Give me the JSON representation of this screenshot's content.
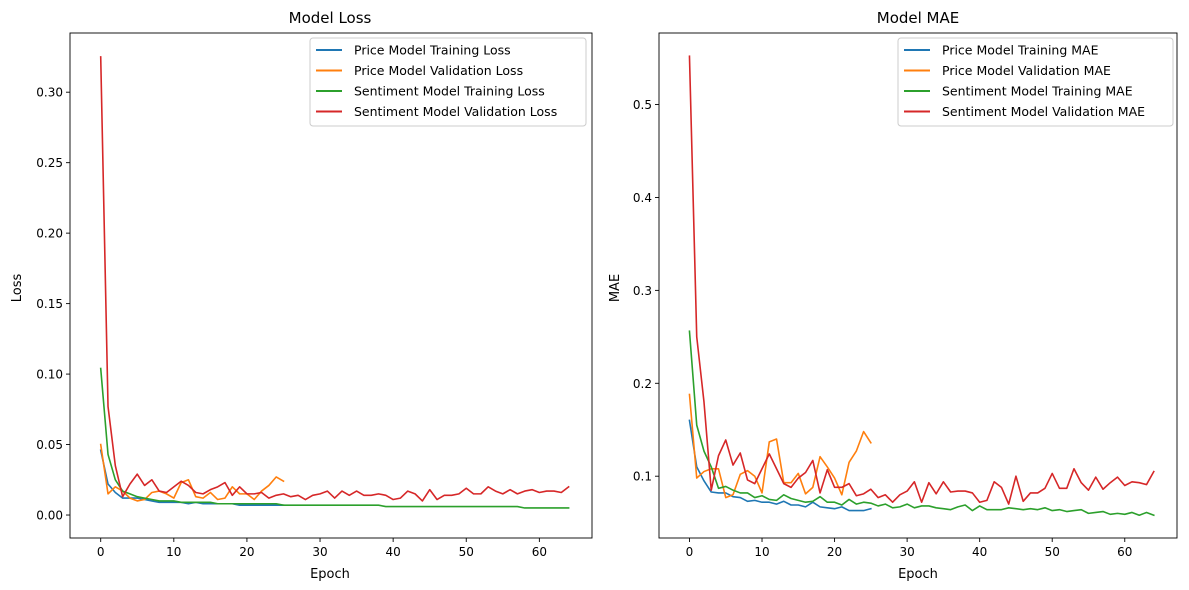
{
  "chart_data": [
    {
      "type": "line",
      "title": "Model Loss",
      "xlabel": "Epoch",
      "ylabel": "Loss",
      "xlim": [
        -4.2,
        67.2
      ],
      "ylim": [
        -0.0163,
        0.342
      ],
      "xticks": [
        0,
        10,
        20,
        30,
        40,
        50,
        60
      ],
      "xtick_labels": [
        "0",
        "10",
        "20",
        "30",
        "40",
        "50",
        "60"
      ],
      "yticks": [
        0.0,
        0.05,
        0.1,
        0.15,
        0.2,
        0.25,
        0.3
      ],
      "ytick_labels": [
        "0.00",
        "0.05",
        "0.10",
        "0.15",
        "0.20",
        "0.25",
        "0.30"
      ],
      "grid": false,
      "legend_position": "top-right",
      "series": [
        {
          "name": "Price Model Training Loss",
          "color": "#1f77b4",
          "values": [
            0.046,
            0.022,
            0.016,
            0.012,
            0.012,
            0.012,
            0.011,
            0.01,
            0.009,
            0.009,
            0.009,
            0.009,
            0.008,
            0.009,
            0.008,
            0.008,
            0.008,
            0.008,
            0.008,
            0.007,
            0.007,
            0.007,
            0.007,
            0.007,
            0.007,
            0.007
          ]
        },
        {
          "name": "Price Model Validation Loss",
          "color": "#ff7f0e",
          "values": [
            0.05,
            0.015,
            0.02,
            0.017,
            0.012,
            0.01,
            0.011,
            0.016,
            0.017,
            0.015,
            0.012,
            0.023,
            0.025,
            0.013,
            0.012,
            0.016,
            0.011,
            0.012,
            0.02,
            0.015,
            0.015,
            0.011,
            0.017,
            0.021,
            0.027,
            0.024
          ]
        },
        {
          "name": "Sentiment Model Training Loss",
          "color": "#2ca02c",
          "values": [
            0.104,
            0.043,
            0.025,
            0.017,
            0.015,
            0.013,
            0.012,
            0.011,
            0.01,
            0.01,
            0.01,
            0.009,
            0.009,
            0.009,
            0.009,
            0.009,
            0.008,
            0.008,
            0.008,
            0.008,
            0.008,
            0.008,
            0.008,
            0.008,
            0.008,
            0.007,
            0.007,
            0.007,
            0.007,
            0.007,
            0.007,
            0.007,
            0.007,
            0.007,
            0.007,
            0.007,
            0.007,
            0.007,
            0.007,
            0.006,
            0.006,
            0.006,
            0.006,
            0.006,
            0.006,
            0.006,
            0.006,
            0.006,
            0.006,
            0.006,
            0.006,
            0.006,
            0.006,
            0.006,
            0.006,
            0.006,
            0.006,
            0.006,
            0.005,
            0.005,
            0.005,
            0.005,
            0.005,
            0.005,
            0.005
          ]
        },
        {
          "name": "Sentiment Model Validation Loss",
          "color": "#d62728",
          "values": [
            0.325,
            0.077,
            0.035,
            0.013,
            0.022,
            0.029,
            0.021,
            0.025,
            0.017,
            0.016,
            0.02,
            0.024,
            0.021,
            0.016,
            0.015,
            0.018,
            0.02,
            0.023,
            0.014,
            0.02,
            0.015,
            0.015,
            0.016,
            0.012,
            0.014,
            0.015,
            0.013,
            0.014,
            0.011,
            0.014,
            0.015,
            0.017,
            0.012,
            0.017,
            0.014,
            0.017,
            0.014,
            0.014,
            0.015,
            0.014,
            0.011,
            0.012,
            0.017,
            0.015,
            0.01,
            0.018,
            0.011,
            0.014,
            0.014,
            0.015,
            0.019,
            0.015,
            0.015,
            0.02,
            0.017,
            0.015,
            0.018,
            0.015,
            0.017,
            0.018,
            0.016,
            0.017,
            0.017,
            0.016,
            0.02
          ]
        }
      ]
    },
    {
      "type": "line",
      "title": "Model MAE",
      "xlabel": "Epoch",
      "ylabel": "MAE",
      "xlim": [
        -4.2,
        67.2
      ],
      "ylim": [
        0.0335,
        0.577
      ],
      "xticks": [
        0,
        10,
        20,
        30,
        40,
        50,
        60
      ],
      "xtick_labels": [
        "0",
        "10",
        "20",
        "30",
        "40",
        "50",
        "60"
      ],
      "yticks": [
        0.1,
        0.2,
        0.3,
        0.4,
        0.5
      ],
      "ytick_labels": [
        "0.1",
        "0.2",
        "0.3",
        "0.4",
        "0.5"
      ],
      "grid": false,
      "legend_position": "top-right",
      "series": [
        {
          "name": "Price Model Training MAE",
          "color": "#1f77b4",
          "values": [
            0.16,
            0.11,
            0.095,
            0.083,
            0.082,
            0.082,
            0.078,
            0.077,
            0.073,
            0.074,
            0.072,
            0.072,
            0.07,
            0.073,
            0.069,
            0.069,
            0.067,
            0.072,
            0.067,
            0.066,
            0.065,
            0.067,
            0.063,
            0.063,
            0.063,
            0.065
          ]
        },
        {
          "name": "Price Model Validation MAE",
          "color": "#ff7f0e",
          "values": [
            0.188,
            0.098,
            0.105,
            0.108,
            0.108,
            0.077,
            0.08,
            0.102,
            0.106,
            0.1,
            0.082,
            0.137,
            0.14,
            0.093,
            0.093,
            0.103,
            0.081,
            0.088,
            0.121,
            0.11,
            0.098,
            0.08,
            0.115,
            0.127,
            0.148,
            0.136
          ]
        },
        {
          "name": "Sentiment Model Training MAE",
          "color": "#2ca02c",
          "values": [
            0.256,
            0.155,
            0.127,
            0.11,
            0.087,
            0.089,
            0.085,
            0.082,
            0.082,
            0.077,
            0.079,
            0.075,
            0.074,
            0.08,
            0.076,
            0.074,
            0.072,
            0.073,
            0.078,
            0.072,
            0.072,
            0.069,
            0.075,
            0.07,
            0.072,
            0.071,
            0.068,
            0.07,
            0.066,
            0.067,
            0.07,
            0.066,
            0.068,
            0.068,
            0.066,
            0.065,
            0.064,
            0.067,
            0.069,
            0.063,
            0.068,
            0.064,
            0.064,
            0.064,
            0.066,
            0.065,
            0.064,
            0.065,
            0.064,
            0.066,
            0.063,
            0.064,
            0.062,
            0.063,
            0.064,
            0.06,
            0.061,
            0.062,
            0.059,
            0.06,
            0.059,
            0.061,
            0.058,
            0.061,
            0.058
          ]
        },
        {
          "name": "Sentiment Model Validation MAE",
          "color": "#d62728",
          "values": [
            0.552,
            0.25,
            0.18,
            0.085,
            0.122,
            0.139,
            0.112,
            0.125,
            0.096,
            0.092,
            0.108,
            0.124,
            0.108,
            0.092,
            0.088,
            0.098,
            0.104,
            0.117,
            0.082,
            0.107,
            0.088,
            0.088,
            0.092,
            0.079,
            0.081,
            0.086,
            0.077,
            0.08,
            0.072,
            0.08,
            0.084,
            0.094,
            0.072,
            0.093,
            0.081,
            0.094,
            0.083,
            0.084,
            0.084,
            0.082,
            0.072,
            0.074,
            0.094,
            0.088,
            0.07,
            0.1,
            0.073,
            0.082,
            0.082,
            0.087,
            0.103,
            0.087,
            0.087,
            0.108,
            0.093,
            0.085,
            0.099,
            0.086,
            0.093,
            0.099,
            0.09,
            0.094,
            0.093,
            0.091,
            0.105
          ]
        }
      ]
    }
  ]
}
